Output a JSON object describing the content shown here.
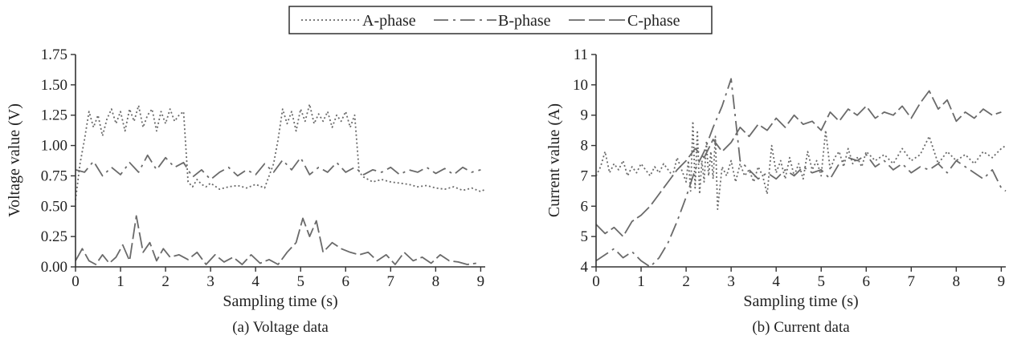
{
  "legend": {
    "placement": "top-center",
    "entries": [
      {
        "label": "A-phase",
        "style": "dotted"
      },
      {
        "label": "B-phase",
        "style": "dash-dot"
      },
      {
        "label": "C-phase",
        "style": "long-dash"
      }
    ]
  },
  "series_color": "#6a6a6a",
  "chart_data": [
    {
      "type": "line",
      "caption": "(a) Voltage data",
      "xlabel": "Sampling time (s)",
      "ylabel": "Voltage value (V)",
      "xlim": [
        0,
        9.1
      ],
      "ylim": [
        0,
        1.75
      ],
      "xticks": [
        0,
        1,
        2,
        3,
        4,
        5,
        6,
        7,
        8,
        9
      ],
      "yticks": [
        "0.00",
        "0.25",
        "0.50",
        "0.75",
        "1.00",
        "1.25",
        "1.50",
        "1.75"
      ],
      "grid": false,
      "series": [
        {
          "name": "A-phase",
          "x": [
            0,
            0.1,
            0.2,
            0.3,
            0.4,
            0.5,
            0.6,
            0.7,
            0.8,
            0.9,
            1.0,
            1.1,
            1.2,
            1.3,
            1.4,
            1.5,
            1.6,
            1.7,
            1.8,
            1.9,
            2.0,
            2.1,
            2.2,
            2.3,
            2.4,
            2.5,
            2.6,
            2.7,
            2.8,
            2.9,
            3.0,
            3.2,
            3.4,
            3.6,
            3.8,
            4.0,
            4.2,
            4.3,
            4.4,
            4.5,
            4.6,
            4.7,
            4.8,
            4.9,
            5.0,
            5.1,
            5.2,
            5.3,
            5.4,
            5.5,
            5.6,
            5.7,
            5.8,
            5.9,
            6.0,
            6.1,
            6.2,
            6.3,
            6.4,
            6.6,
            6.8,
            7.0,
            7.2,
            7.4,
            7.6,
            7.8,
            8.0,
            8.2,
            8.4,
            8.6,
            8.8,
            9.0,
            9.1
          ],
          "y": [
            0.55,
            0.85,
            1.05,
            1.28,
            1.15,
            1.25,
            1.08,
            1.22,
            1.3,
            1.18,
            1.28,
            1.12,
            1.3,
            1.2,
            1.33,
            1.15,
            1.25,
            1.3,
            1.12,
            1.28,
            1.18,
            1.3,
            1.2,
            1.25,
            1.28,
            0.7,
            0.66,
            0.72,
            0.68,
            0.66,
            0.69,
            0.64,
            0.66,
            0.67,
            0.65,
            0.68,
            0.65,
            0.75,
            0.85,
            1.05,
            1.3,
            1.18,
            1.28,
            1.12,
            1.3,
            1.2,
            1.34,
            1.18,
            1.26,
            1.2,
            1.28,
            1.15,
            1.25,
            1.2,
            1.28,
            1.15,
            1.25,
            0.78,
            0.74,
            0.7,
            0.72,
            0.7,
            0.69,
            0.68,
            0.66,
            0.67,
            0.65,
            0.64,
            0.66,
            0.63,
            0.65,
            0.62,
            0.64
          ]
        },
        {
          "name": "B-phase",
          "x": [
            0,
            0.2,
            0.4,
            0.6,
            0.8,
            1.0,
            1.2,
            1.4,
            1.6,
            1.8,
            2.0,
            2.2,
            2.4,
            2.6,
            2.8,
            3.0,
            3.2,
            3.4,
            3.6,
            3.8,
            4.0,
            4.2,
            4.4,
            4.6,
            4.8,
            5.0,
            5.2,
            5.4,
            5.6,
            5.8,
            6.0,
            6.2,
            6.4,
            6.6,
            6.8,
            7.0,
            7.2,
            7.4,
            7.6,
            7.8,
            8.0,
            8.2,
            8.4,
            8.6,
            8.8,
            9.0
          ],
          "y": [
            0.8,
            0.78,
            0.87,
            0.75,
            0.82,
            0.76,
            0.86,
            0.78,
            0.92,
            0.8,
            0.9,
            0.82,
            0.86,
            0.74,
            0.8,
            0.72,
            0.78,
            0.82,
            0.75,
            0.8,
            0.76,
            0.85,
            0.78,
            0.88,
            0.8,
            0.9,
            0.76,
            0.82,
            0.78,
            0.86,
            0.78,
            0.82,
            0.76,
            0.8,
            0.78,
            0.82,
            0.76,
            0.8,
            0.78,
            0.82,
            0.77,
            0.81,
            0.76,
            0.82,
            0.78,
            0.8
          ]
        },
        {
          "name": "C-phase",
          "x": [
            0,
            0.15,
            0.3,
            0.45,
            0.6,
            0.75,
            0.9,
            1.05,
            1.2,
            1.35,
            1.5,
            1.65,
            1.8,
            1.95,
            2.1,
            2.3,
            2.5,
            2.7,
            2.9,
            3.1,
            3.3,
            3.5,
            3.7,
            3.9,
            4.1,
            4.3,
            4.5,
            4.7,
            4.9,
            5.05,
            5.2,
            5.35,
            5.5,
            5.7,
            5.9,
            6.1,
            6.3,
            6.5,
            6.7,
            6.9,
            7.1,
            7.3,
            7.5,
            7.7,
            7.9,
            8.1,
            8.3,
            8.5,
            8.7,
            8.9
          ],
          "y": [
            0.05,
            0.15,
            0.05,
            0.02,
            0.1,
            0.03,
            0.08,
            0.18,
            0.05,
            0.42,
            0.12,
            0.2,
            0.05,
            0.15,
            0.08,
            0.1,
            0.06,
            0.12,
            0.02,
            0.1,
            0.04,
            0.08,
            0.02,
            0.1,
            0.03,
            0.06,
            0.02,
            0.12,
            0.2,
            0.4,
            0.25,
            0.38,
            0.12,
            0.2,
            0.15,
            0.12,
            0.1,
            0.12,
            0.05,
            0.1,
            0.02,
            0.12,
            0.05,
            0.08,
            0.03,
            0.1,
            0.05,
            0.04,
            0.02,
            0.03
          ]
        }
      ]
    },
    {
      "type": "line",
      "caption": "(b) Current data",
      "xlabel": "Sampling time (s)",
      "ylabel": "Current value (A)",
      "xlim": [
        0,
        9.1
      ],
      "ylim": [
        4,
        11
      ],
      "xticks": [
        0,
        1,
        2,
        3,
        4,
        5,
        6,
        7,
        8,
        9
      ],
      "yticks": [
        "4",
        "5",
        "6",
        "7",
        "8",
        "9",
        "10",
        "11"
      ],
      "grid": false,
      "series": [
        {
          "name": "A-phase",
          "x": [
            0,
            0.1,
            0.2,
            0.3,
            0.4,
            0.5,
            0.6,
            0.7,
            0.8,
            0.9,
            1.0,
            1.1,
            1.2,
            1.3,
            1.4,
            1.5,
            1.6,
            1.7,
            1.8,
            1.9,
            2.0,
            2.05,
            2.1,
            2.15,
            2.2,
            2.25,
            2.3,
            2.35,
            2.4,
            2.45,
            2.5,
            2.55,
            2.6,
            2.65,
            2.7,
            2.8,
            2.9,
            3.0,
            3.1,
            3.2,
            3.3,
            3.4,
            3.5,
            3.6,
            3.7,
            3.8,
            3.9,
            4.0,
            4.1,
            4.2,
            4.3,
            4.4,
            4.5,
            4.6,
            4.7,
            4.8,
            4.9,
            5.0,
            5.1,
            5.2,
            5.3,
            5.4,
            5.5,
            5.6,
            5.7,
            5.8,
            5.9,
            6.0,
            6.2,
            6.4,
            6.6,
            6.8,
            7.0,
            7.2,
            7.4,
            7.6,
            7.8,
            8.0,
            8.2,
            8.4,
            8.6,
            8.8,
            9.0,
            9.1
          ],
          "y": [
            7.0,
            7.3,
            7.8,
            7.1,
            7.4,
            7.2,
            7.5,
            7.0,
            7.3,
            7.1,
            7.4,
            7.2,
            7.0,
            7.3,
            7.1,
            7.4,
            7.2,
            7.0,
            7.6,
            7.2,
            6.8,
            7.5,
            6.5,
            8.8,
            6.6,
            8.5,
            6.4,
            7.5,
            6.8,
            8.1,
            7.0,
            7.8,
            6.9,
            8.3,
            5.9,
            7.3,
            7.0,
            7.5,
            6.8,
            7.4,
            7.0,
            7.2,
            6.8,
            7.3,
            7.0,
            6.4,
            8.0,
            7.1,
            7.5,
            6.9,
            7.6,
            7.0,
            7.4,
            6.9,
            7.8,
            7.2,
            7.5,
            7.0,
            8.5,
            7.2,
            7.6,
            7.8,
            7.3,
            7.9,
            7.4,
            7.6,
            7.3,
            7.8,
            7.5,
            7.7,
            7.4,
            7.9,
            7.5,
            7.7,
            8.3,
            7.4,
            7.8,
            7.5,
            7.7,
            7.4,
            7.8,
            7.6,
            7.9,
            8.0
          ]
        },
        {
          "name": "B-phase",
          "x": [
            0,
            0.2,
            0.4,
            0.6,
            0.8,
            1.0,
            1.2,
            1.4,
            1.6,
            1.8,
            2.0,
            2.2,
            2.4,
            2.6,
            2.8,
            3.0,
            3.2,
            3.4,
            3.6,
            3.8,
            4.0,
            4.2,
            4.4,
            4.6,
            4.8,
            5.0,
            5.2,
            5.4,
            5.6,
            5.8,
            6.0,
            6.2,
            6.4,
            6.6,
            6.8,
            7.0,
            7.2,
            7.4,
            7.6,
            7.8,
            8.0,
            8.2,
            8.4,
            8.6,
            8.8,
            9.0,
            9.1
          ],
          "y": [
            4.2,
            4.4,
            4.6,
            4.3,
            4.5,
            4.2,
            4.0,
            4.3,
            4.8,
            5.5,
            6.3,
            7.2,
            7.8,
            8.6,
            9.3,
            10.2,
            7.5,
            7.2,
            6.9,
            7.1,
            6.9,
            7.2,
            7.0,
            7.3,
            7.1,
            7.2,
            6.9,
            7.4,
            7.6,
            7.5,
            7.7,
            7.3,
            7.5,
            7.2,
            7.4,
            7.1,
            7.3,
            7.2,
            7.4,
            7.1,
            7.5,
            7.3,
            7.1,
            6.9,
            7.2,
            6.6,
            6.5
          ]
        },
        {
          "name": "C-phase",
          "x": [
            0,
            0.2,
            0.4,
            0.6,
            0.8,
            1.0,
            1.2,
            1.4,
            1.6,
            1.8,
            2.0,
            2.2,
            2.4,
            2.6,
            2.8,
            3.0,
            3.2,
            3.4,
            3.6,
            3.8,
            4.0,
            4.2,
            4.4,
            4.6,
            4.8,
            5.0,
            5.2,
            5.4,
            5.6,
            5.8,
            6.0,
            6.2,
            6.4,
            6.6,
            6.8,
            7.0,
            7.2,
            7.4,
            7.6,
            7.8,
            8.0,
            8.2,
            8.4,
            8.6,
            8.8,
            9.0
          ],
          "y": [
            5.4,
            5.1,
            5.3,
            5.0,
            5.5,
            5.7,
            6.0,
            6.4,
            6.8,
            7.2,
            7.5,
            7.9,
            7.6,
            8.2,
            7.8,
            8.1,
            8.6,
            8.3,
            8.7,
            8.5,
            8.9,
            8.6,
            9.0,
            8.7,
            8.8,
            8.5,
            9.1,
            8.8,
            9.2,
            9.0,
            9.3,
            8.9,
            9.1,
            9.0,
            9.3,
            8.9,
            9.4,
            9.8,
            9.2,
            9.5,
            8.8,
            9.1,
            8.9,
            9.2,
            9.0,
            9.1
          ]
        }
      ]
    }
  ]
}
